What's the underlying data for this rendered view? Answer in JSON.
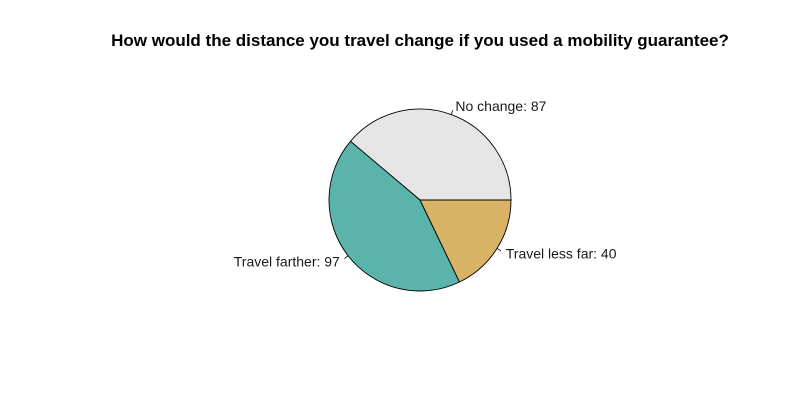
{
  "chart_data": {
    "type": "pie",
    "title": "How would the distance you travel change if you used a mobility guarantee?",
    "slices": [
      {
        "label": "No change",
        "value": 87,
        "display": "No change: 87",
        "color": "#e5e5e5"
      },
      {
        "label": "Travel farther",
        "value": 97,
        "display": "Travel farther: 97",
        "color": "#5ab4ac"
      },
      {
        "label": "Travel less far",
        "value": 40,
        "display": "Travel less far: 40",
        "color": "#d8b365"
      }
    ],
    "start_angle_deg": 0,
    "direction": "counterclockwise",
    "legend": "none",
    "grid": false
  }
}
